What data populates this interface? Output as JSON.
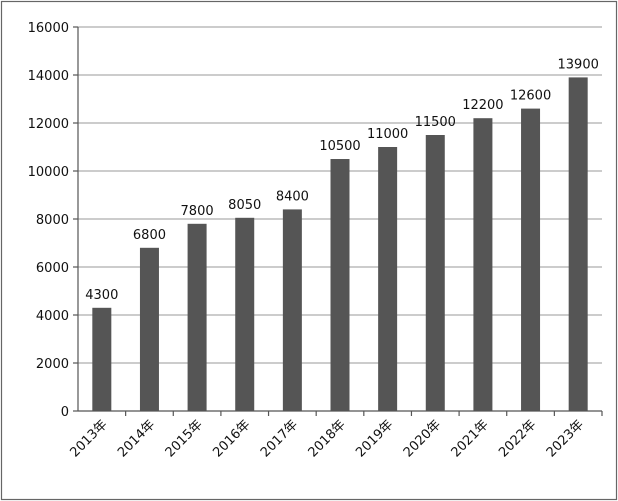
{
  "chart_data": {
    "type": "bar",
    "categories": [
      "2013年",
      "2014年",
      "2015年",
      "2016年",
      "2017年",
      "2018年",
      "2019年",
      "2020年",
      "2021年",
      "2022年",
      "2023年"
    ],
    "values": [
      4300,
      6800,
      7800,
      8050,
      8400,
      10500,
      11000,
      11500,
      12200,
      12600,
      13900
    ],
    "data_labels": [
      "4300",
      "6800",
      "7800",
      "8050",
      "8400",
      "10500",
      "11000",
      "11500",
      "12200",
      "12600",
      "13900"
    ],
    "y_ticks": [
      0,
      2000,
      4000,
      6000,
      8000,
      10000,
      12000,
      14000,
      16000
    ],
    "y_tick_labels": [
      "0",
      "2000",
      "4000",
      "6000",
      "8000",
      "10000",
      "12000",
      "14000",
      "16000"
    ],
    "ylim": [
      0,
      16000
    ],
    "title": "",
    "xlabel": "",
    "ylabel": "",
    "grid": true,
    "legend": "none",
    "bar_color": "#555555",
    "grid_color": "#9a9a9a",
    "frame_color": "#666666"
  }
}
